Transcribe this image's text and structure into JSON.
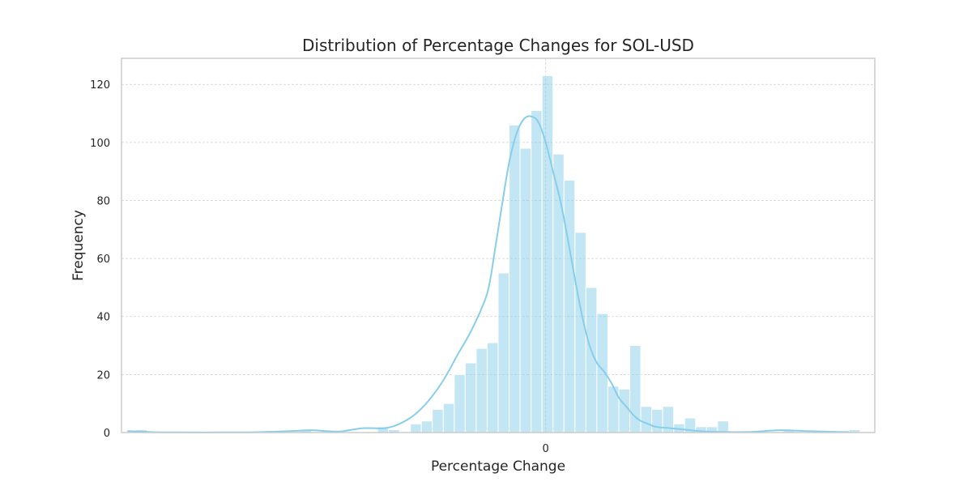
{
  "chart_data": {
    "type": "bar",
    "title": "Distribution of Percentage Changes for SOL-USD",
    "xlabel": "Percentage Change",
    "ylabel": "Frequency",
    "ylim": [
      0,
      129
    ],
    "xlim": [
      -58,
      45
    ],
    "x_ticks": [
      0
    ],
    "y_ticks": [
      0,
      20,
      40,
      60,
      80,
      100,
      120
    ],
    "grid": true,
    "bin_width": 1.5,
    "bin_start": -56,
    "counts": [
      1,
      0,
      0,
      0,
      0,
      0,
      0,
      0,
      0,
      0,
      0,
      0,
      0,
      0,
      0,
      1,
      0,
      0,
      0,
      0,
      0,
      0,
      2,
      1,
      0,
      3,
      4,
      8,
      10,
      20,
      24,
      29,
      31,
      55,
      106,
      98,
      111,
      123,
      96,
      87,
      69,
      50,
      41,
      16,
      15,
      30,
      9,
      8,
      9,
      3,
      5,
      2,
      2,
      4,
      0,
      0,
      0,
      0,
      0,
      1,
      0,
      0,
      0,
      0,
      0,
      1
    ],
    "kde_curve": {
      "x": [
        -57.2,
        -55,
        -53,
        -50,
        -45,
        -40,
        -35,
        -32,
        -30,
        -28,
        -25,
        -22,
        -20,
        -18,
        -16,
        -14,
        -12,
        -10,
        -8,
        -7,
        -6,
        -5,
        -4,
        -3,
        -2,
        -1,
        0,
        1,
        2,
        3,
        4,
        5,
        6,
        7,
        8,
        9,
        10,
        11,
        12,
        13,
        14,
        15,
        17,
        19,
        21,
        24,
        28,
        32,
        36,
        40,
        41.5
      ],
      "y": [
        0.5,
        0.3,
        0.1,
        0.05,
        0.05,
        0.1,
        0.5,
        0.8,
        0.5,
        0.4,
        1.5,
        1.5,
        3,
        6,
        11,
        18,
        27,
        36,
        48,
        62,
        78,
        93,
        103,
        108,
        109,
        107,
        100,
        90,
        80,
        67,
        53,
        40,
        30,
        24,
        21,
        17,
        12,
        9,
        6,
        4,
        3,
        2,
        1.5,
        1,
        0.5,
        0.2,
        0.2,
        0.8,
        0.5,
        0.2,
        0.2
      ]
    }
  }
}
